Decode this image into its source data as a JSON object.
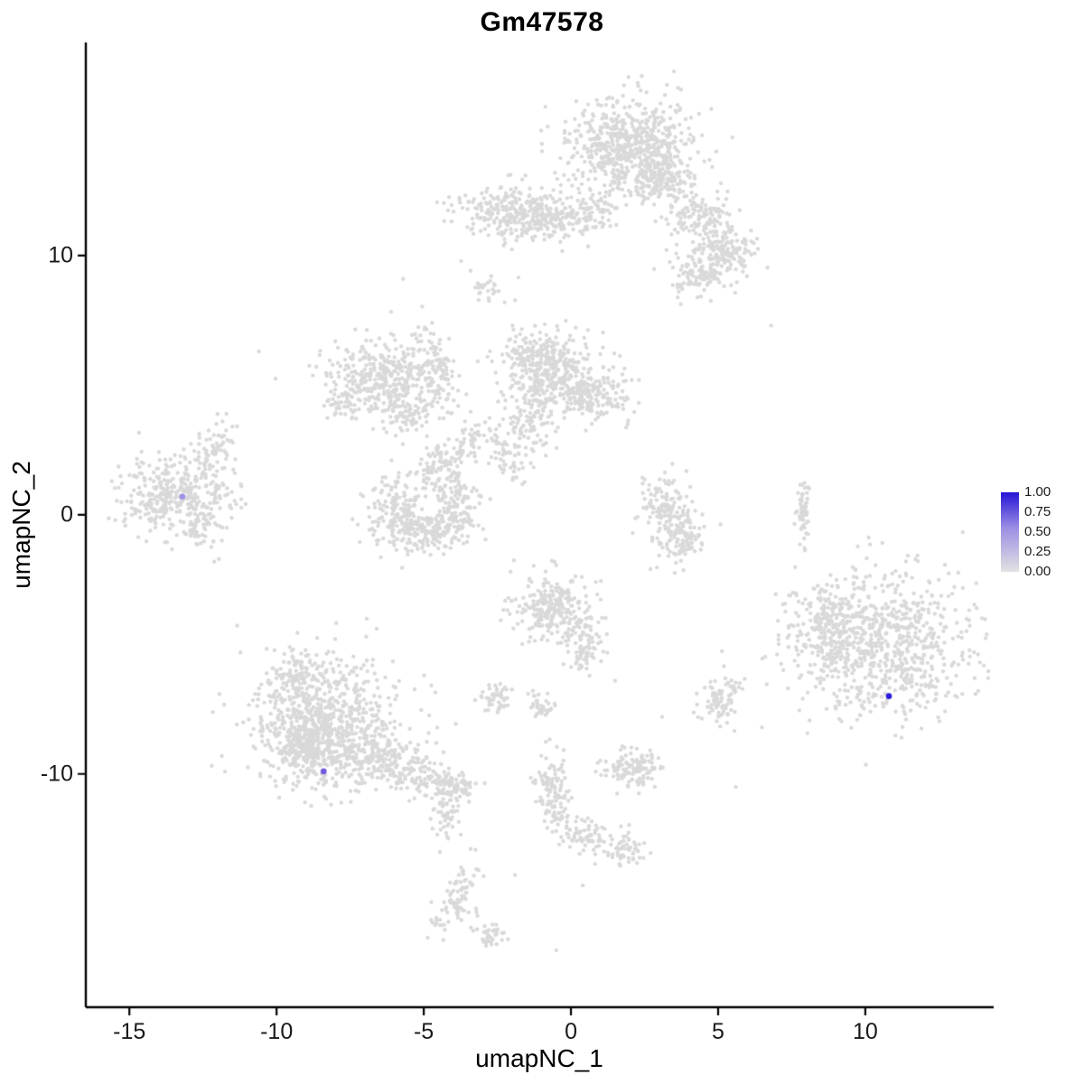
{
  "title": "Gm47578",
  "axes": {
    "x": {
      "label": "umapNC_1",
      "ticks": [
        -15,
        -10,
        -5,
        0,
        5,
        10
      ]
    },
    "y": {
      "label": "umapNC_2",
      "ticks": [
        -10,
        0,
        10
      ]
    }
  },
  "legend": {
    "labels": [
      "1.00",
      "0.75",
      "0.50",
      "0.25",
      "0.00"
    ],
    "top_color": "#2414d6",
    "mid_color": "#9d8fe4",
    "bottom_color": "#e2e2e2"
  },
  "colors": {
    "point": "#d9d9d9",
    "axis": "#000000",
    "text": "#1a1a1a"
  },
  "chart_data": {
    "type": "scatter",
    "title": "Gm47578",
    "xlabel": "umapNC_1",
    "ylabel": "umapNC_2",
    "xlim": [
      -16.48,
      14.36
    ],
    "ylim": [
      -19.0,
      18.22
    ],
    "grid": false,
    "legend_position": "right",
    "legend_ticks": [
      "1.00",
      "0.75",
      "0.50",
      "0.25",
      "0.00"
    ],
    "point_value_default": 0.0,
    "clusters": [
      {
        "x": 2.0,
        "y": 14.2,
        "sx": 1.05,
        "sy": 0.95,
        "n": 650
      },
      {
        "x": 3.1,
        "y": 13.0,
        "sx": 0.5,
        "sy": 0.45,
        "n": 120
      },
      {
        "x": 4.4,
        "y": 11.4,
        "sx": 0.55,
        "sy": 0.55,
        "n": 140
      },
      {
        "x": 5.2,
        "y": 10.1,
        "sx": 0.55,
        "sy": 0.5,
        "n": 150
      },
      {
        "x": 4.3,
        "y": 9.2,
        "sx": 0.45,
        "sy": 0.4,
        "n": 90
      },
      {
        "x": -1.9,
        "y": 11.7,
        "sx": 0.95,
        "sy": 0.5,
        "n": 300
      },
      {
        "x": -0.3,
        "y": 11.4,
        "sx": 0.5,
        "sy": 0.4,
        "n": 90
      },
      {
        "x": 0.9,
        "y": 11.6,
        "sx": 0.35,
        "sy": 0.35,
        "n": 50
      },
      {
        "x": -2.8,
        "y": 8.7,
        "sx": 0.3,
        "sy": 0.35,
        "n": 25
      },
      {
        "x": -0.9,
        "y": 5.6,
        "sx": 0.75,
        "sy": 0.8,
        "n": 420
      },
      {
        "x": 0.8,
        "y": 4.6,
        "sx": 0.75,
        "sy": 0.5,
        "n": 190
      },
      {
        "x": -1.4,
        "y": 3.4,
        "sx": 0.4,
        "sy": 0.55,
        "n": 80
      },
      {
        "x": -2.2,
        "y": 2.3,
        "sx": 0.25,
        "sy": 0.7,
        "n": 60,
        "angle": 20
      },
      {
        "x": -6.3,
        "y": 5.3,
        "sx": 0.95,
        "sy": 0.75,
        "n": 360
      },
      {
        "x": -4.6,
        "y": 5.8,
        "sx": 0.3,
        "sy": 0.85,
        "n": 90,
        "angle": 12
      },
      {
        "x": -5.4,
        "y": 3.9,
        "sx": 0.5,
        "sy": 0.4,
        "n": 70
      },
      {
        "x": -7.7,
        "y": 4.3,
        "sx": 0.4,
        "sy": 0.3,
        "n": 45
      },
      {
        "x": -5.9,
        "y": 0.2,
        "sx": 0.45,
        "sy": 0.65,
        "n": 140
      },
      {
        "x": -5.0,
        "y": -0.6,
        "sx": 0.75,
        "sy": 0.4,
        "n": 190
      },
      {
        "x": -3.9,
        "y": 0.3,
        "sx": 0.4,
        "sy": 0.6,
        "n": 110
      },
      {
        "x": -4.6,
        "y": 1.7,
        "sx": 0.4,
        "sy": 0.5,
        "n": 90
      },
      {
        "x": -3.4,
        "y": 2.9,
        "sx": 0.3,
        "sy": 0.5,
        "n": 50,
        "angle": -30
      },
      {
        "x": -13.3,
        "y": 0.8,
        "sx": 0.95,
        "sy": 0.75,
        "n": 400
      },
      {
        "x": -12.1,
        "y": 2.6,
        "sx": 0.25,
        "sy": 0.6,
        "n": 55,
        "angle": -20
      },
      {
        "x": -12.6,
        "y": -0.8,
        "sx": 0.4,
        "sy": 0.3,
        "n": 35
      },
      {
        "x": 3.2,
        "y": 0.3,
        "sx": 0.45,
        "sy": 0.65,
        "n": 120
      },
      {
        "x": 3.8,
        "y": -0.9,
        "sx": 0.4,
        "sy": 0.55,
        "n": 110
      },
      {
        "x": 7.9,
        "y": 0.2,
        "sx": 0.12,
        "sy": 0.75,
        "n": 55
      },
      {
        "x": -0.6,
        "y": -3.6,
        "sx": 0.7,
        "sy": 0.65,
        "n": 260
      },
      {
        "x": 0.4,
        "y": -5.0,
        "sx": 0.4,
        "sy": 0.5,
        "n": 90
      },
      {
        "x": 10.5,
        "y": -5.0,
        "sx": 1.5,
        "sy": 1.4,
        "n": 800
      },
      {
        "x": 8.7,
        "y": -4.5,
        "sx": 0.6,
        "sy": 0.8,
        "n": 140
      },
      {
        "x": -8.3,
        "y": -8.0,
        "sx": 1.25,
        "sy": 1.3,
        "n": 750
      },
      {
        "x": -8.9,
        "y": -8.9,
        "sx": 0.65,
        "sy": 0.6,
        "n": 280
      },
      {
        "x": -6.1,
        "y": -9.6,
        "sx": 1.1,
        "sy": 0.45,
        "n": 230,
        "angle": -18
      },
      {
        "x": -4.1,
        "y": -10.5,
        "sx": 0.5,
        "sy": 0.3,
        "n": 90,
        "angle": -18
      },
      {
        "x": -9.4,
        "y": -6.2,
        "sx": 0.5,
        "sy": 0.45,
        "n": 70
      },
      {
        "x": -2.6,
        "y": -7.0,
        "sx": 0.32,
        "sy": 0.28,
        "n": 45
      },
      {
        "x": -1.1,
        "y": -7.4,
        "sx": 0.28,
        "sy": 0.22,
        "n": 35
      },
      {
        "x": 5.1,
        "y": -7.2,
        "sx": 0.38,
        "sy": 0.5,
        "n": 80
      },
      {
        "x": 2.1,
        "y": -9.8,
        "sx": 0.5,
        "sy": 0.38,
        "n": 120
      },
      {
        "x": -0.6,
        "y": -10.7,
        "sx": 0.3,
        "sy": 0.75,
        "n": 110
      },
      {
        "x": 0.4,
        "y": -12.3,
        "sx": 0.5,
        "sy": 0.38,
        "n": 80,
        "angle": -30
      },
      {
        "x": 1.9,
        "y": -12.9,
        "sx": 0.4,
        "sy": 0.28,
        "n": 55
      },
      {
        "x": -4.2,
        "y": -11.6,
        "sx": 0.28,
        "sy": 0.5,
        "n": 50
      },
      {
        "x": -3.9,
        "y": -14.9,
        "sx": 0.28,
        "sy": 0.85,
        "n": 85,
        "angle": -22
      },
      {
        "x": -2.7,
        "y": -16.2,
        "sx": 0.3,
        "sy": 0.28,
        "n": 35
      }
    ],
    "singles": [
      [
        -10.6,
        6.3
      ],
      [
        6.8,
        7.3
      ],
      [
        -3.0,
        8.8
      ],
      [
        2.7,
        -2.1
      ],
      [
        1.5,
        -6.4
      ],
      [
        -1.9,
        -13.9
      ],
      [
        -0.5,
        -16.8
      ],
      [
        0.4,
        -14.3
      ],
      [
        -11.5,
        3.4
      ],
      [
        5.6,
        -10.5
      ],
      [
        3.1,
        -7.8
      ],
      [
        -6.6,
        -4.4
      ]
    ],
    "highlighted_points": [
      {
        "x": -13.2,
        "y": 0.7,
        "value": 0.35,
        "color": "#a090e6"
      },
      {
        "x": -8.4,
        "y": -9.9,
        "value": 0.65,
        "color": "#7258dd"
      },
      {
        "x": 10.8,
        "y": -7.0,
        "value": 1.0,
        "color": "#2a1ad8"
      }
    ]
  }
}
